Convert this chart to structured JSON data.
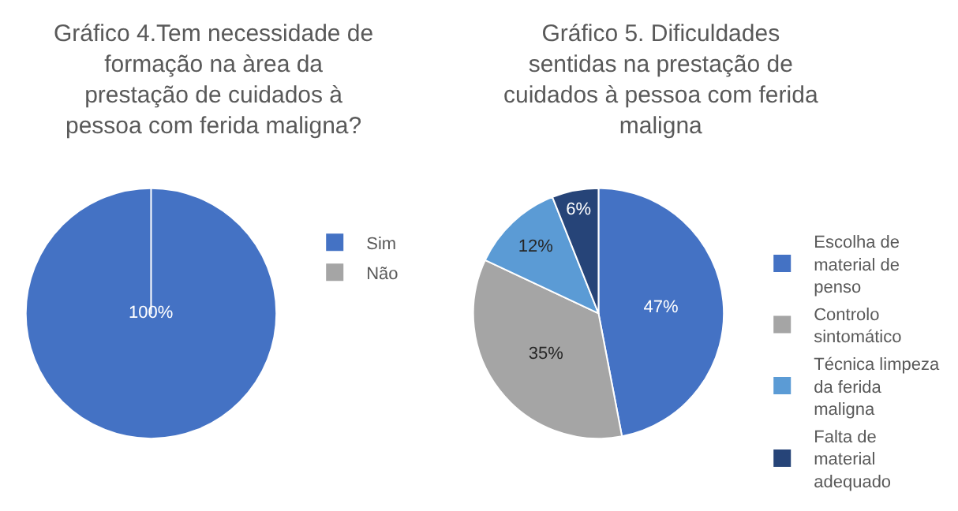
{
  "chart_data": [
    {
      "type": "pie",
      "title": "Gráfico 4.Tem necessidade de formação na àrea da prestação de cuidados à pessoa com ferida maligna?",
      "categories": [
        "Sim",
        "Não"
      ],
      "values": [
        100,
        0
      ],
      "colors": [
        "#4472c4",
        "#a5a5a5"
      ],
      "value_labels": [
        "100%",
        null
      ],
      "legend": "right"
    },
    {
      "type": "pie",
      "title": "Gráfico 5. Dificuldades sentidas na prestação de cuidados à pessoa com ferida maligna",
      "categories": [
        "Escolha de material de penso",
        "Controlo sintomático",
        "Técnica limpeza da ferida maligna",
        "Falta de material adequado"
      ],
      "values": [
        47,
        35,
        12,
        6
      ],
      "colors": [
        "#4472c4",
        "#a5a5a5",
        "#5b9bd5",
        "#264478"
      ],
      "value_labels": [
        "47%",
        "35%",
        "12%",
        "6%"
      ],
      "legend": "right"
    }
  ]
}
